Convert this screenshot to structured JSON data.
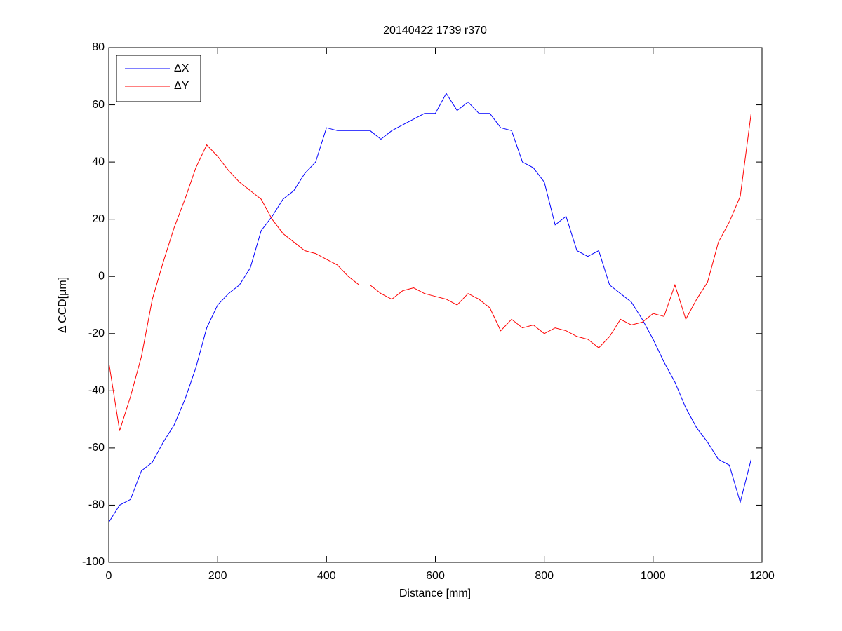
{
  "chart_data": {
    "type": "line",
    "title": "20140422 1739 r370",
    "x_label": "Distance [mm]",
    "y_label": "Δ CCD[μm]",
    "x": [
      0,
      20,
      40,
      60,
      80,
      100,
      120,
      140,
      160,
      180,
      200,
      220,
      240,
      260,
      280,
      300,
      320,
      340,
      360,
      380,
      400,
      420,
      440,
      460,
      480,
      500,
      520,
      540,
      560,
      580,
      600,
      620,
      640,
      660,
      680,
      700,
      720,
      740,
      760,
      780,
      800,
      820,
      840,
      860,
      880,
      900,
      920,
      940,
      960,
      980,
      1000,
      1020,
      1040,
      1060,
      1080,
      1100,
      1120,
      1140,
      1160,
      1180
    ],
    "series": [
      {
        "name": "ΔX",
        "color": "#0000ff",
        "values": [
          -86,
          -80,
          -78,
          -68,
          -65,
          -58,
          -52,
          -43,
          -32,
          -18,
          -10,
          -6,
          -3,
          3,
          16,
          21,
          27,
          30,
          36,
          40,
          52,
          51,
          51,
          51,
          51,
          48,
          51,
          53,
          55,
          57,
          57,
          64,
          58,
          61,
          57,
          57,
          52,
          51,
          40,
          38,
          33,
          18,
          21,
          9,
          7,
          9,
          -3,
          -6,
          -9,
          -15,
          -22,
          -30,
          -37,
          -46,
          -53,
          -58,
          -64,
          -66,
          -79,
          -64
        ]
      },
      {
        "name": "ΔY",
        "color": "#ff0000",
        "values": [
          -30,
          -54,
          -42,
          -28,
          -8,
          5,
          17,
          27,
          38,
          46,
          42,
          37,
          33,
          30,
          27,
          20,
          15,
          12,
          9,
          8,
          6,
          4,
          0,
          -3,
          -3,
          -6,
          -8,
          -5,
          -4,
          -6,
          -7,
          -8,
          -10,
          -6,
          -8,
          -11,
          -19,
          -15,
          -18,
          -17,
          -20,
          -18,
          -19,
          -21,
          -22,
          -25,
          -21,
          -15,
          -17,
          -16,
          -13,
          -14,
          -3,
          -15,
          -8,
          -2,
          12,
          19,
          28,
          57
        ]
      }
    ],
    "xlim": [
      0,
      1200
    ],
    "xticks": [
      0,
      200,
      400,
      600,
      800,
      1000,
      1200
    ],
    "ylim": [
      -100,
      80
    ],
    "yticks": [
      -100,
      -80,
      -60,
      -40,
      -20,
      0,
      20,
      40,
      60,
      80
    ],
    "grid": false,
    "legend": "upper left"
  }
}
